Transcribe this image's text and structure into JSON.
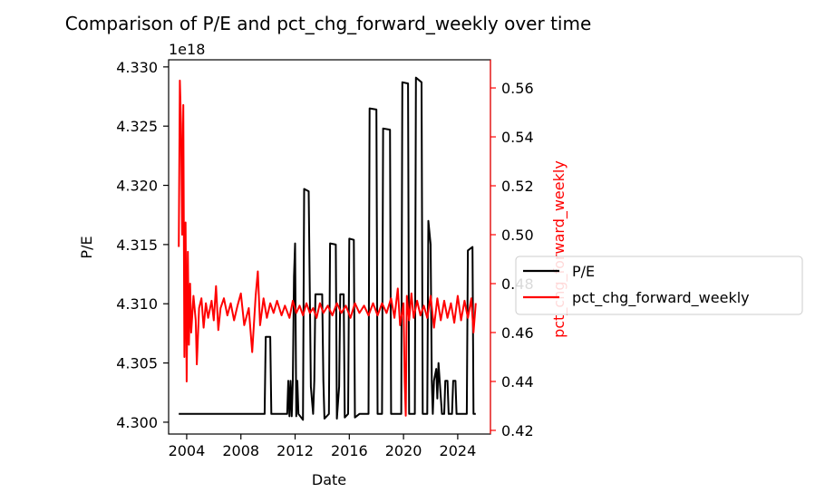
{
  "chart_data": {
    "type": "line",
    "title": "Comparison of P/E and pct_chg_forward_weekly over time",
    "xlabel": "Date",
    "x_ticks": [
      "2004",
      "2008",
      "2012",
      "2016",
      "2020",
      "2024"
    ],
    "x_range": [
      "2002-09-01",
      "2026-06-01"
    ],
    "left_axis": {
      "label": "P/E",
      "offset_text": "1e18",
      "ylim": [
        4.299,
        4.3306
      ],
      "ticks": [
        "4.300",
        "4.305",
        "4.310",
        "4.315",
        "4.320",
        "4.325",
        "4.330"
      ],
      "color": "#000000"
    },
    "right_axis": {
      "label": "pct_chg_forward_weekly",
      "ylim": [
        0.4185,
        0.5715
      ],
      "ticks": [
        "0.42",
        "0.44",
        "0.46",
        "0.48",
        "0.50",
        "0.52",
        "0.54",
        "0.56"
      ],
      "color": "#ff0000"
    },
    "legend": {
      "placement": "right, outside plot"
    },
    "series": [
      {
        "name": "P/E",
        "axis": "left",
        "color": "#000000",
        "points": [
          [
            "2003-06-01",
            4.3007
          ],
          [
            "2009-10-01",
            4.3007
          ],
          [
            "2009-11-01",
            4.3072
          ],
          [
            "2010-03-01",
            4.3072
          ],
          [
            "2010-04-01",
            4.3007
          ],
          [
            "2011-06-01",
            4.3007
          ],
          [
            "2011-07-01",
            4.3035
          ],
          [
            "2011-08-01",
            4.3005
          ],
          [
            "2011-09-01",
            4.3035
          ],
          [
            "2011-10-01",
            4.3005
          ],
          [
            "2011-11-01",
            4.3035
          ],
          [
            "2011-12-01",
            4.3123
          ],
          [
            "2012-01-01",
            4.3151
          ],
          [
            "2012-02-01",
            4.3005
          ],
          [
            "2012-03-01",
            4.3035
          ],
          [
            "2012-04-01",
            4.3007
          ],
          [
            "2012-08-01",
            4.3002
          ],
          [
            "2012-09-01",
            4.3197
          ],
          [
            "2013-01-01",
            4.3195
          ],
          [
            "2013-03-01",
            4.303
          ],
          [
            "2013-05-01",
            4.3007
          ],
          [
            "2013-06-01",
            4.3035
          ],
          [
            "2013-07-01",
            4.3108
          ],
          [
            "2014-01-01",
            4.3108
          ],
          [
            "2014-02-01",
            4.3035
          ],
          [
            "2014-03-01",
            4.3003
          ],
          [
            "2014-07-01",
            4.3007
          ],
          [
            "2014-08-01",
            4.3151
          ],
          [
            "2015-01-01",
            4.315
          ],
          [
            "2015-02-01",
            4.3003
          ],
          [
            "2015-04-01",
            4.303
          ],
          [
            "2015-05-01",
            4.3108
          ],
          [
            "2015-08-01",
            4.3108
          ],
          [
            "2015-09-01",
            4.3004
          ],
          [
            "2015-12-01",
            4.3007
          ],
          [
            "2016-01-01",
            4.3155
          ],
          [
            "2016-05-01",
            4.3154
          ],
          [
            "2016-06-01",
            4.3004
          ],
          [
            "2016-10-01",
            4.3007
          ],
          [
            "2017-06-01",
            4.3007
          ],
          [
            "2017-07-01",
            4.3265
          ],
          [
            "2018-01-01",
            4.3264
          ],
          [
            "2018-02-01",
            4.3007
          ],
          [
            "2018-06-01",
            4.3007
          ],
          [
            "2018-07-01",
            4.3248
          ],
          [
            "2019-01-01",
            4.3247
          ],
          [
            "2019-02-01",
            4.3007
          ],
          [
            "2019-11-01",
            4.3007
          ],
          [
            "2019-12-01",
            4.3287
          ],
          [
            "2020-05-01",
            4.3286
          ],
          [
            "2020-06-01",
            4.3007
          ],
          [
            "2020-11-01",
            4.3007
          ],
          [
            "2020-12-01",
            4.3291
          ],
          [
            "2021-05-01",
            4.3287
          ],
          [
            "2021-06-01",
            4.3007
          ],
          [
            "2021-10-01",
            4.3007
          ],
          [
            "2021-11-01",
            4.317
          ],
          [
            "2022-01-01",
            4.315
          ],
          [
            "2022-02-01",
            4.3035
          ],
          [
            "2022-03-01",
            4.3007
          ],
          [
            "2022-04-01",
            4.3035
          ],
          [
            "2022-06-01",
            4.3045
          ],
          [
            "2022-07-01",
            4.302
          ],
          [
            "2022-08-01",
            4.305
          ],
          [
            "2022-09-01",
            4.3035
          ],
          [
            "2022-11-01",
            4.3007
          ],
          [
            "2023-01-01",
            4.3007
          ],
          [
            "2023-02-01",
            4.3035
          ],
          [
            "2023-04-01",
            4.3035
          ],
          [
            "2023-05-01",
            4.3007
          ],
          [
            "2023-08-01",
            4.3007
          ],
          [
            "2023-09-01",
            4.3035
          ],
          [
            "2023-11-01",
            4.3035
          ],
          [
            "2023-12-01",
            4.3007
          ],
          [
            "2024-09-01",
            4.3007
          ],
          [
            "2024-10-01",
            4.3145
          ],
          [
            "2025-02-01",
            4.3148
          ],
          [
            "2025-03-01",
            4.3007
          ],
          [
            "2025-05-01",
            4.3007
          ]
        ]
      },
      {
        "name": "pct_chg_forward_weekly",
        "axis": "right",
        "color": "#ff0000",
        "points": [
          [
            "2003-06-01",
            0.495
          ],
          [
            "2003-07-01",
            0.563
          ],
          [
            "2003-08-01",
            0.545
          ],
          [
            "2003-09-01",
            0.5
          ],
          [
            "2003-10-01",
            0.553
          ],
          [
            "2003-11-01",
            0.45
          ],
          [
            "2003-12-01",
            0.505
          ],
          [
            "2004-01-01",
            0.44
          ],
          [
            "2004-02-01",
            0.493
          ],
          [
            "2004-03-01",
            0.455
          ],
          [
            "2004-04-01",
            0.48
          ],
          [
            "2004-05-01",
            0.46
          ],
          [
            "2004-07-01",
            0.475
          ],
          [
            "2004-09-01",
            0.465
          ],
          [
            "2004-10-01",
            0.447
          ],
          [
            "2004-12-01",
            0.47
          ],
          [
            "2005-02-01",
            0.474
          ],
          [
            "2005-04-01",
            0.462
          ],
          [
            "2005-06-01",
            0.472
          ],
          [
            "2005-08-01",
            0.466
          ],
          [
            "2005-11-01",
            0.473
          ],
          [
            "2006-01-01",
            0.465
          ],
          [
            "2006-03-01",
            0.479
          ],
          [
            "2006-05-01",
            0.461
          ],
          [
            "2006-07-01",
            0.47
          ],
          [
            "2006-10-01",
            0.474
          ],
          [
            "2007-01-01",
            0.467
          ],
          [
            "2007-04-01",
            0.472
          ],
          [
            "2007-07-01",
            0.465
          ],
          [
            "2007-10-01",
            0.471
          ],
          [
            "2008-01-01",
            0.476
          ],
          [
            "2008-04-01",
            0.463
          ],
          [
            "2008-08-01",
            0.47
          ],
          [
            "2008-11-01",
            0.452
          ],
          [
            "2009-02-01",
            0.475
          ],
          [
            "2009-04-01",
            0.485
          ],
          [
            "2009-06-01",
            0.463
          ],
          [
            "2009-09-01",
            0.474
          ],
          [
            "2009-12-01",
            0.466
          ],
          [
            "2010-03-01",
            0.472
          ],
          [
            "2010-06-01",
            0.468
          ],
          [
            "2010-09-01",
            0.473
          ],
          [
            "2011-01-01",
            0.467
          ],
          [
            "2011-04-01",
            0.471
          ],
          [
            "2011-08-01",
            0.466
          ],
          [
            "2011-11-01",
            0.473
          ],
          [
            "2012-02-01",
            0.468
          ],
          [
            "2012-05-01",
            0.471
          ],
          [
            "2012-08-01",
            0.467
          ],
          [
            "2012-11-01",
            0.472
          ],
          [
            "2013-02-01",
            0.468
          ],
          [
            "2013-05-01",
            0.47
          ],
          [
            "2013-08-01",
            0.466
          ],
          [
            "2013-11-01",
            0.472
          ],
          [
            "2014-02-01",
            0.468
          ],
          [
            "2014-06-01",
            0.471
          ],
          [
            "2014-10-01",
            0.467
          ],
          [
            "2015-02-01",
            0.472
          ],
          [
            "2015-06-01",
            0.468
          ],
          [
            "2015-10-01",
            0.471
          ],
          [
            "2016-02-01",
            0.466
          ],
          [
            "2016-06-01",
            0.472
          ],
          [
            "2016-10-01",
            0.468
          ],
          [
            "2017-02-01",
            0.471
          ],
          [
            "2017-06-01",
            0.467
          ],
          [
            "2017-10-01",
            0.472
          ],
          [
            "2018-02-01",
            0.467
          ],
          [
            "2018-06-01",
            0.472
          ],
          [
            "2018-10-01",
            0.468
          ],
          [
            "2019-02-01",
            0.474
          ],
          [
            "2019-05-01",
            0.466
          ],
          [
            "2019-08-01",
            0.478
          ],
          [
            "2019-10-01",
            0.463
          ],
          [
            "2020-01-01",
            0.472
          ],
          [
            "2020-02-01",
            0.44
          ],
          [
            "2020-03-01",
            0.426
          ],
          [
            "2020-04-01",
            0.475
          ],
          [
            "2020-06-01",
            0.465
          ],
          [
            "2020-08-01",
            0.476
          ],
          [
            "2020-10-01",
            0.466
          ],
          [
            "2021-01-01",
            0.473
          ],
          [
            "2021-04-01",
            0.467
          ],
          [
            "2021-07-01",
            0.471
          ],
          [
            "2021-10-01",
            0.466
          ],
          [
            "2022-01-01",
            0.475
          ],
          [
            "2022-04-01",
            0.462
          ],
          [
            "2022-07-01",
            0.474
          ],
          [
            "2022-10-01",
            0.465
          ],
          [
            "2023-01-01",
            0.473
          ],
          [
            "2023-04-01",
            0.466
          ],
          [
            "2023-07-01",
            0.472
          ],
          [
            "2023-10-01",
            0.464
          ],
          [
            "2024-01-01",
            0.475
          ],
          [
            "2024-04-01",
            0.465
          ],
          [
            "2024-07-01",
            0.473
          ],
          [
            "2024-10-01",
            0.466
          ],
          [
            "2025-01-01",
            0.474
          ],
          [
            "2025-03-01",
            0.46
          ],
          [
            "2025-05-01",
            0.472
          ]
        ]
      }
    ]
  }
}
